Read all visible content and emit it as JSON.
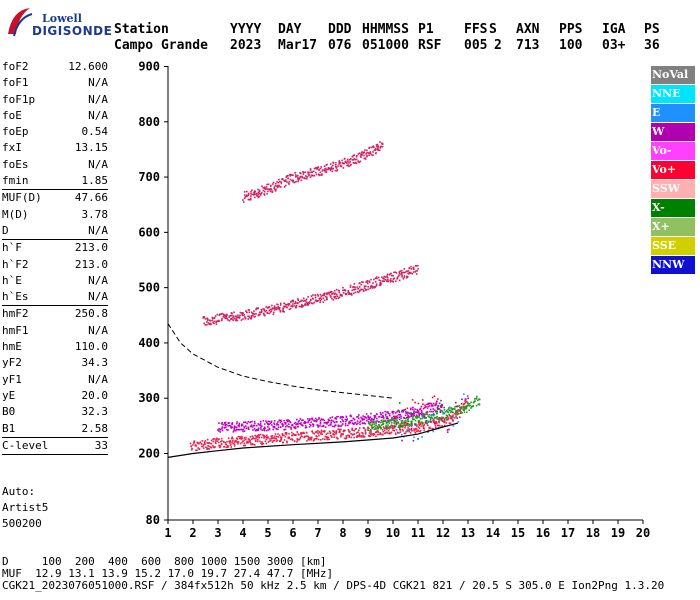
{
  "logo": {
    "line1": "Lowell",
    "line2": "DIGISONDE"
  },
  "header": {
    "labels": [
      "Station",
      "YYYY",
      "DAY",
      "DDD",
      "HHMMSS",
      "P1",
      "FFS",
      "S",
      "AXN",
      "PPS",
      "IGA",
      "PS"
    ],
    "values": [
      "Campo Grande",
      "2023",
      "Mar17",
      "076",
      "051000",
      "RSF",
      "005",
      "2",
      "713",
      "100",
      "03+",
      "36"
    ]
  },
  "params": [
    {
      "label": "foF2",
      "value": "12.600"
    },
    {
      "label": "foF1",
      "value": "N/A"
    },
    {
      "label": "foF1p",
      "value": "N/A"
    },
    {
      "label": "foE",
      "value": "N/A"
    },
    {
      "label": "foEp",
      "value": "0.54"
    },
    {
      "label": "fxI",
      "value": "13.15"
    },
    {
      "label": "foEs",
      "value": "N/A"
    },
    {
      "label": "fmin",
      "value": "1.85"
    },
    {
      "label": "MUF(D)",
      "value": "47.66",
      "sep": true
    },
    {
      "label": "M(D)",
      "value": "3.78"
    },
    {
      "label": "D",
      "value": "N/A"
    },
    {
      "label": "h`F",
      "value": "213.0",
      "sep": true
    },
    {
      "label": "h`F2",
      "value": "213.0"
    },
    {
      "label": "h`E",
      "value": "N/A"
    },
    {
      "label": "h`Es",
      "value": "N/A"
    },
    {
      "label": "hmF2",
      "value": "250.8",
      "sep": true
    },
    {
      "label": "hmF1",
      "value": "N/A"
    },
    {
      "label": "hmE",
      "value": "110.0"
    },
    {
      "label": "yF2",
      "value": "34.3"
    },
    {
      "label": "yF1",
      "value": "N/A"
    },
    {
      "label": "yE",
      "value": "20.0"
    },
    {
      "label": "B0",
      "value": "32.3"
    },
    {
      "label": "B1",
      "value": "2.58"
    },
    {
      "label": "C-level",
      "value": "33",
      "sep": true
    }
  ],
  "auto": {
    "line1": "Auto:",
    "line2": "Artist5",
    "line3": "500200"
  },
  "legend": [
    {
      "label": "NoVal",
      "color": "#808080"
    },
    {
      "label": "NNE",
      "color": "#00e5ff"
    },
    {
      "label": "E",
      "color": "#1e90ff"
    },
    {
      "label": "W",
      "color": "#b000b0"
    },
    {
      "label": "Vo-",
      "color": "#ff40ff"
    },
    {
      "label": "Vo+",
      "color": "#ff0030"
    },
    {
      "label": "SSW",
      "color": "#ffb0b0"
    },
    {
      "label": "X-",
      "color": "#008000"
    },
    {
      "label": "X+",
      "color": "#90c060"
    },
    {
      "label": "SSE",
      "color": "#d0d000"
    },
    {
      "label": "NNW",
      "color": "#1010d0"
    }
  ],
  "bottom": {
    "d_line": "D     100  200  400  600  800 1000 1500 3000 [km]",
    "muf_line": "MUF  12.9 13.1 13.9 15.2 17.0 19.7 27.4 47.7 [MHz]",
    "file_line": "CGK21_2023076051000.RSF / 384fx512h 50 kHz 2.5 km / DPS-4D CGK21 821 / 20.5 S 305.0 E Ion2Png 1.3.20"
  },
  "chart_data": {
    "type": "scatter",
    "xlim": [
      1,
      20
    ],
    "ylim": [
      80,
      900
    ],
    "x_ticks": [
      1,
      2,
      3,
      4,
      5,
      6,
      7,
      8,
      9,
      10,
      11,
      12,
      13,
      14,
      15,
      16,
      17,
      18,
      19,
      20
    ],
    "y_ticks": [
      80,
      200,
      300,
      400,
      500,
      600,
      700,
      800,
      900
    ],
    "grid": false,
    "traces": [
      {
        "name": "O-trace",
        "color": "#e8204a",
        "points": [
          [
            1.9,
            215
          ],
          [
            3,
            220
          ],
          [
            4,
            224
          ],
          [
            5,
            228
          ],
          [
            6,
            231
          ],
          [
            7,
            234
          ],
          [
            8,
            237
          ],
          [
            9,
            240
          ],
          [
            10,
            244
          ],
          [
            11,
            248
          ],
          [
            12,
            258
          ],
          [
            12.6,
            275
          ],
          [
            13,
            300
          ]
        ]
      },
      {
        "name": "upper",
        "color": "#c000c0",
        "points": [
          [
            3,
            248
          ],
          [
            4,
            250
          ],
          [
            5,
            252
          ],
          [
            6,
            254
          ],
          [
            7,
            257
          ],
          [
            8,
            260
          ],
          [
            9,
            265
          ],
          [
            10,
            270
          ],
          [
            11,
            278
          ],
          [
            12,
            290
          ]
        ]
      },
      {
        "name": "2nd-hop",
        "color": "#d02060",
        "points": [
          [
            2.4,
            440
          ],
          [
            3,
            445
          ],
          [
            4,
            452
          ],
          [
            5,
            460
          ],
          [
            6,
            470
          ],
          [
            7,
            482
          ],
          [
            8,
            493
          ],
          [
            9,
            507
          ],
          [
            10,
            520
          ],
          [
            11,
            535
          ]
        ]
      },
      {
        "name": "3rd-hop",
        "color": "#d02060",
        "points": [
          [
            4,
            665
          ],
          [
            5,
            680
          ],
          [
            6,
            700
          ],
          [
            7,
            712
          ],
          [
            8,
            725
          ],
          [
            9,
            745
          ],
          [
            9.6,
            760
          ]
        ]
      },
      {
        "name": "X-trace",
        "color": "#2a9a2a",
        "points": [
          [
            9,
            250
          ],
          [
            10,
            256
          ],
          [
            11,
            262
          ],
          [
            12,
            272
          ],
          [
            13,
            285
          ],
          [
            13.5,
            300
          ]
        ]
      }
    ],
    "profile_dashed": [
      [
        1,
        435
      ],
      [
        1.5,
        400
      ],
      [
        2,
        380
      ],
      [
        3,
        356
      ],
      [
        4,
        340
      ],
      [
        5,
        330
      ],
      [
        6,
        322
      ],
      [
        7,
        315
      ],
      [
        8,
        310
      ],
      [
        9,
        305
      ],
      [
        10,
        300
      ]
    ],
    "profile_solid": [
      [
        1,
        193
      ],
      [
        2,
        200
      ],
      [
        3,
        205
      ],
      [
        4,
        210
      ],
      [
        6,
        216
      ],
      [
        8,
        221
      ],
      [
        10,
        228
      ],
      [
        11,
        235
      ],
      [
        12,
        248
      ],
      [
        12.6,
        255
      ]
    ]
  }
}
